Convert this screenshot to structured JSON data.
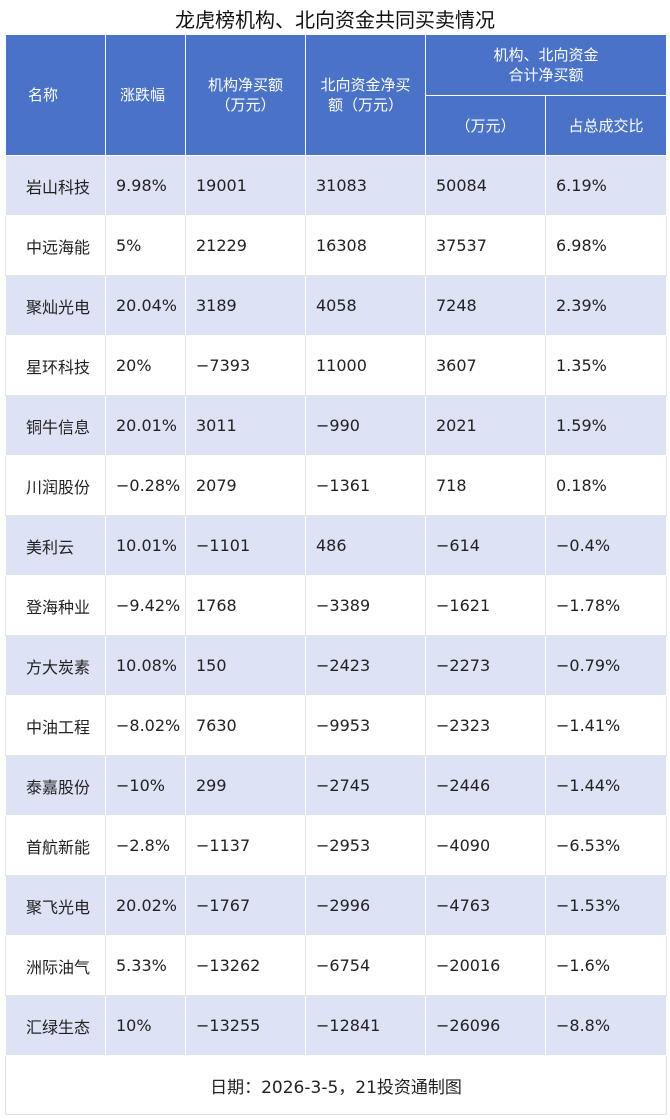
{
  "title": "龙虎榜机构、北向资金共同买卖情况",
  "headers": {
    "name": "名称",
    "change": "涨跌幅",
    "inst_net": "机构净买额\n（万元）",
    "north_net": "北向资金净买\n额（万元）",
    "combined_group": "机构、北向资金\n合计净买额",
    "combined_unit": "（万元）",
    "ratio": "占总成交比"
  },
  "rows": [
    {
      "name": "岩山科技",
      "change": "9.98%",
      "inst": "19001",
      "north": "31083",
      "total": "50084",
      "ratio": "6.19%"
    },
    {
      "name": "中远海能",
      "change": "5%",
      "inst": "21229",
      "north": "16308",
      "total": "37537",
      "ratio": "6.98%"
    },
    {
      "name": "聚灿光电",
      "change": "20.04%",
      "inst": "3189",
      "north": "4058",
      "total": "7248",
      "ratio": "2.39%"
    },
    {
      "name": "星环科技",
      "change": "20%",
      "inst": "-7393",
      "north": "11000",
      "total": "3607",
      "ratio": "1.35%"
    },
    {
      "name": "铜牛信息",
      "change": "20.01%",
      "inst": "3011",
      "north": "-990",
      "total": "2021",
      "ratio": "1.59%"
    },
    {
      "name": "川润股份",
      "change": "-0.28%",
      "inst": "2079",
      "north": "-1361",
      "total": "718",
      "ratio": "0.18%"
    },
    {
      "name": "美利云",
      "change": "10.01%",
      "inst": "-1101",
      "north": "486",
      "total": "-614",
      "ratio": "-0.4%"
    },
    {
      "name": "登海种业",
      "change": "-9.42%",
      "inst": "1768",
      "north": "-3389",
      "total": "-1621",
      "ratio": "-1.78%"
    },
    {
      "name": "方大炭素",
      "change": "10.08%",
      "inst": "150",
      "north": "-2423",
      "total": "-2273",
      "ratio": "-0.79%"
    },
    {
      "name": "中油工程",
      "change": "-8.02%",
      "inst": "7630",
      "north": "-9953",
      "total": "-2323",
      "ratio": "-1.41%"
    },
    {
      "name": "泰嘉股份",
      "change": "-10%",
      "inst": "299",
      "north": "-2745",
      "total": "-2446",
      "ratio": "-1.44%"
    },
    {
      "name": "首航新能",
      "change": "-2.8%",
      "inst": "-1137",
      "north": "-2953",
      "total": "-4090",
      "ratio": "-6.53%"
    },
    {
      "name": "聚飞光电",
      "change": "20.02%",
      "inst": "-1767",
      "north": "-2996",
      "total": "-4763",
      "ratio": "-1.53%"
    },
    {
      "name": "洲际油气",
      "change": "5.33%",
      "inst": "-13262",
      "north": "-6754",
      "total": "-20016",
      "ratio": "-1.6%"
    },
    {
      "name": "汇绿生态",
      "change": "10%",
      "inst": "-13255",
      "north": "-12841",
      "total": "-26096",
      "ratio": "-8.8%"
    }
  ],
  "footer": "日期：2026-3-5，21投资通制图",
  "colors": {
    "header_bg": "#4a73c7",
    "stripe": "#dde2f4"
  }
}
